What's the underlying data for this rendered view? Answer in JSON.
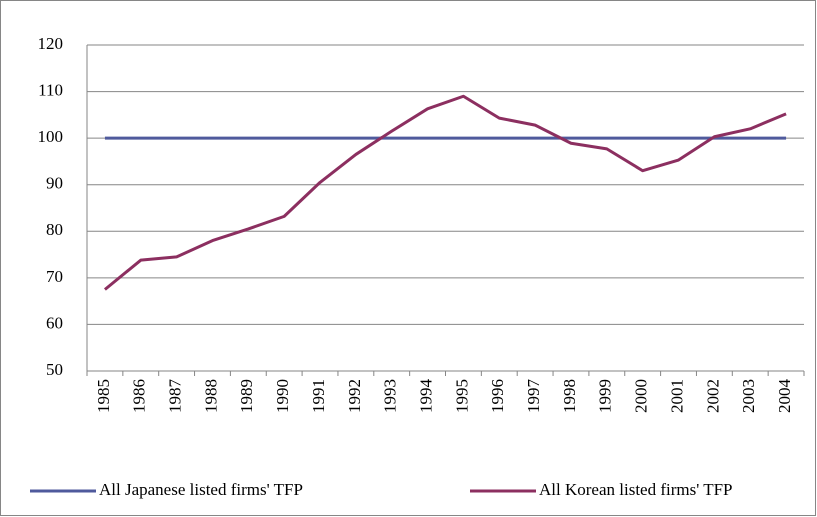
{
  "chart_data": {
    "type": "line",
    "categories": [
      "1985",
      "1986",
      "1987",
      "1988",
      "1989",
      "1990",
      "1991",
      "1992",
      "1993",
      "1994",
      "1995",
      "1996",
      "1997",
      "1998",
      "1999",
      "2000",
      "2001",
      "2002",
      "2003",
      "2004"
    ],
    "series": [
      {
        "name": "All Japanese listed firms' TFP",
        "color": "#4f5a9c",
        "values": [
          100,
          100,
          100,
          100,
          100,
          100,
          100,
          100,
          100,
          100,
          100,
          100,
          100,
          100,
          100,
          100,
          100,
          100,
          100,
          100
        ]
      },
      {
        "name": "All Korean listed firms' TFP",
        "color": "#8c2f60",
        "values": [
          67.5,
          73.8,
          74.5,
          78,
          80.5,
          83.2,
          90.5,
          96.5,
          101.5,
          106.3,
          109,
          104.3,
          102.8,
          98.9,
          97.7,
          93,
          95.3,
          100.3,
          102,
          105.2
        ]
      }
    ],
    "ylim": [
      50,
      120
    ],
    "yticks": [
      50,
      60,
      70,
      80,
      90,
      100,
      110,
      120
    ],
    "grid": true,
    "legend": "bottom"
  }
}
